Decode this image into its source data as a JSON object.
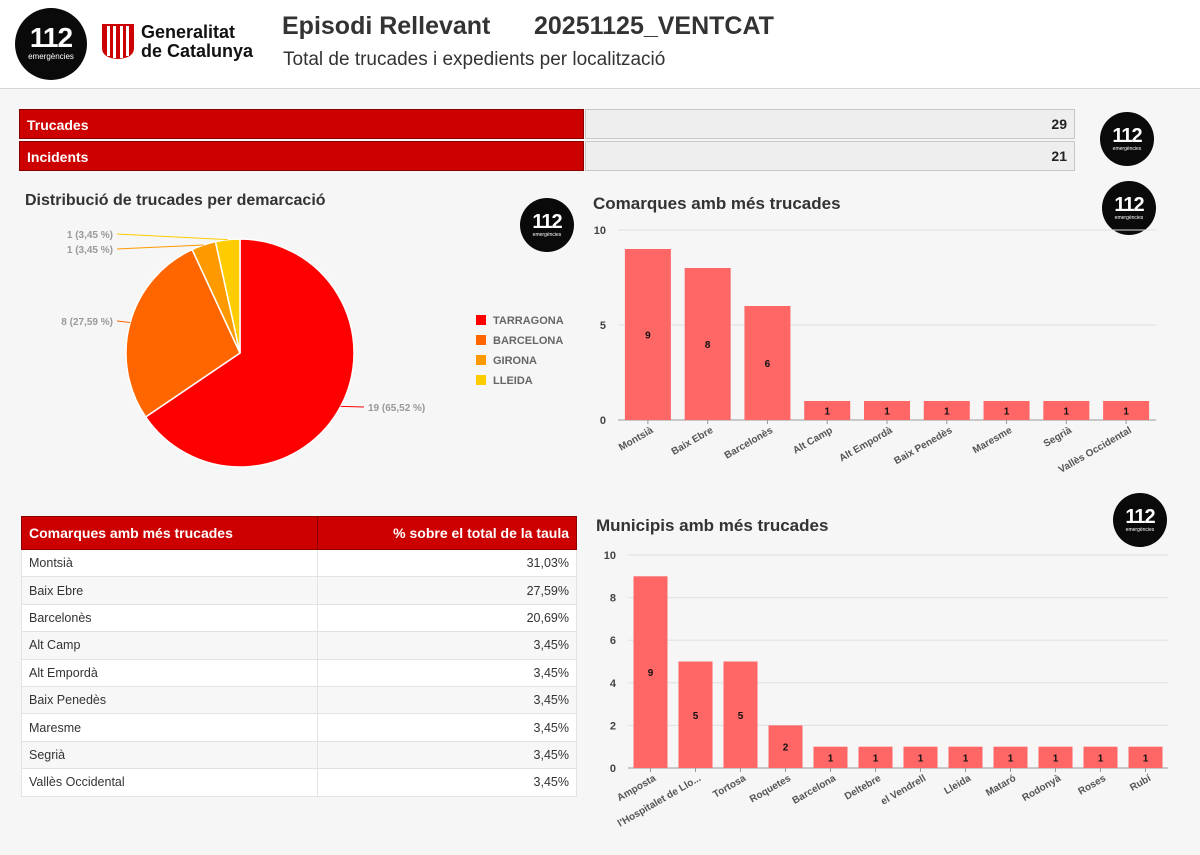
{
  "header": {
    "logo": {
      "number": "112",
      "caption": "emergències"
    },
    "gov_logo": {
      "line1": "Generalitat",
      "line2": "de Catalunya"
    },
    "title": "Episodi Rellevant",
    "code": "20251125_VENTCAT",
    "subtitle": "Total de trucades i expedients per localització"
  },
  "stats": [
    {
      "label": "Trucades",
      "value": "29"
    },
    {
      "label": "Incidents",
      "value": "21"
    }
  ],
  "pie_title": "Distribució de trucades per demarcació",
  "bar1_title": "Comarques amb més trucades",
  "bar2_title": "Municipis amb més trucades",
  "table": {
    "headers": [
      "Comarques amb més trucades",
      "% sobre el total de la taula"
    ],
    "rows": [
      [
        "Montsià",
        "31,03%"
      ],
      [
        "Baix Ebre",
        "27,59%"
      ],
      [
        "Barcelonès",
        "20,69%"
      ],
      [
        "Alt Camp",
        "3,45%"
      ],
      [
        "Alt Empordà",
        "3,45%"
      ],
      [
        "Baix Penedès",
        "3,45%"
      ],
      [
        "Maresme",
        "3,45%"
      ],
      [
        "Segrià",
        "3,45%"
      ],
      [
        "Vallès Occidental",
        "3,45%"
      ]
    ]
  },
  "colors": {
    "accent_red": "#cc0000",
    "pie": [
      "#ff0000",
      "#ff6600",
      "#ff9900",
      "#ffcc00"
    ],
    "bar": "#ff6666"
  },
  "chart_data": [
    {
      "type": "pie",
      "title": "Distribució de trucades per demarcació",
      "legend_position": "right",
      "slices": [
        {
          "name": "TARRAGONA",
          "value": 19,
          "label": "19 (65,52 %)"
        },
        {
          "name": "BARCELONA",
          "value": 8,
          "label": "8 (27,59 %)"
        },
        {
          "name": "GIRONA",
          "value": 1,
          "label": "1 (3,45 %)"
        },
        {
          "name": "LLEIDA",
          "value": 1,
          "label": "1 (3,45 %)"
        }
      ]
    },
    {
      "type": "bar",
      "title": "Comarques amb més trucades",
      "categories": [
        "Montsià",
        "Baix Ebre",
        "Barcelonès",
        "Alt Camp",
        "Alt Empordà",
        "Baix Penedès",
        "Maresme",
        "Segrià",
        "Vallès Occidental"
      ],
      "values": [
        9,
        8,
        6,
        1,
        1,
        1,
        1,
        1,
        1
      ],
      "ylim": [
        0,
        10
      ],
      "yticks": [
        0,
        5,
        10
      ],
      "grid": true
    },
    {
      "type": "bar",
      "title": "Municipis amb més trucades",
      "categories": [
        "Amposta",
        "l'Hospitalet de Llo...",
        "Tortosa",
        "Roquetes",
        "Barcelona",
        "Deltebre",
        "el Vendrell",
        "Lleida",
        "Mataró",
        "Rodonyà",
        "Roses",
        "Rubí"
      ],
      "values": [
        9,
        5,
        5,
        2,
        1,
        1,
        1,
        1,
        1,
        1,
        1,
        1
      ],
      "ylim": [
        0,
        10
      ],
      "yticks": [
        0,
        2,
        4,
        6,
        8,
        10
      ],
      "grid": true
    }
  ]
}
